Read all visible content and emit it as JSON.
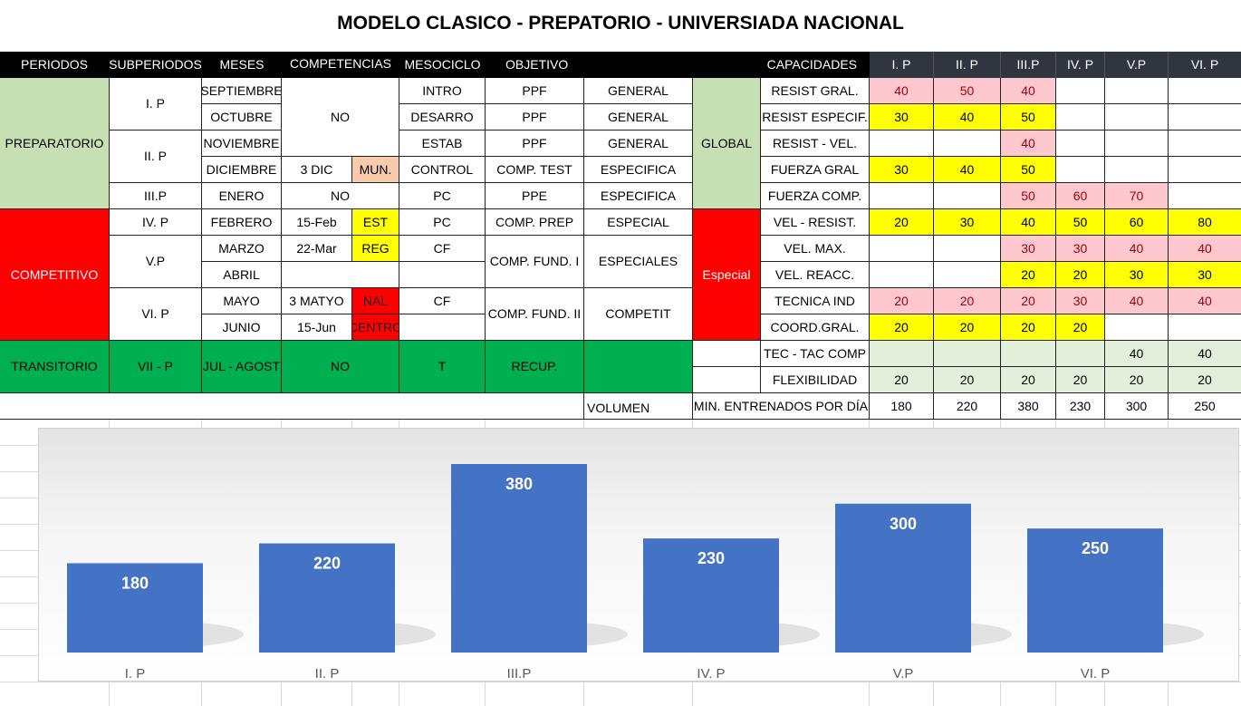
{
  "title": "MODELO CLASICO - PREPATORIO  - UNIVERSIADA NACIONAL",
  "headers": {
    "periodos": "PERIODOS",
    "subperiodos": "SUBPERIODOS",
    "meses": "MESES",
    "competencias": "COMPETENCIAS",
    "mesociclo": "MESOCICLO",
    "objetivo": "OBJETIVO",
    "capacidades": "CAPACIDADES",
    "p1": "I. P",
    "p2": "II. P",
    "p3": "III.P",
    "p4": "IV. P",
    "p5": "V.P",
    "p6": "VI. P"
  },
  "periodos": {
    "preparatorio": "PREPARATORIO",
    "competitivo": "COMPETITIVO",
    "transitorio": "TRANSITORIO"
  },
  "subperiodos": {
    "s1": "I. P",
    "s2": "II. P",
    "s3": "III.P",
    "s4": "IV. P",
    "s5": "V.P",
    "s6": "VI. P",
    "s7": "VII -  P"
  },
  "meses": {
    "m1": "SEPTIEMBRE",
    "m2": "OCTUBRE",
    "m3": "NOVIEMBRE",
    "m4": "DICIEMBRE",
    "m5": "ENERO",
    "m6": "FEBRERO",
    "m7": "MARZO",
    "m8": "ABRIL",
    "m9": "MAYO",
    "m10": "JUNIO",
    "m11": "JUL - AGOST"
  },
  "competencias": {
    "no1": "NO",
    "dic": "3 DIC",
    "mun": "MUN.",
    "no2": "NO",
    "feb": "15-Feb",
    "est": "EST",
    "mar": "22-Mar",
    "reg": "REG",
    "may": "3 MATYO",
    "nal": "NAL",
    "jun": "15-Jun",
    "centro": "CENTRO",
    "no3": "NO"
  },
  "mesociclo": {
    "c1": "INTRO",
    "c2": "DESARRO",
    "c3": "ESTAB",
    "c4": "CONTROL",
    "c5": "PC",
    "c6": "PC",
    "c7": "CF",
    "c8": "CF",
    "c9": "T"
  },
  "objetivo": {
    "o1": "PPF",
    "o2": "PPF",
    "o3": "PPF",
    "o4": "COMP. TEST",
    "o5": "PPE",
    "o6": "COMP. PREP",
    "o7": "COMP. FUND. I",
    "o8": "COMP. FUND. II",
    "o9": "RECUP."
  },
  "tipo": {
    "t1": "GENERAL",
    "t2": "GENERAL",
    "t3": "GENERAL",
    "t4": "ESPECIFICA",
    "t5": "ESPECIFICA",
    "t6": "ESPECIAL",
    "t7": "ESPECIALES",
    "t8": "COMPETIT"
  },
  "grupo": {
    "global": "GLOBAL",
    "especial": "Especial"
  },
  "capacidades": [
    {
      "label": "RESIST GRAL.",
      "values": [
        "40",
        "50",
        "40",
        "",
        "",
        ""
      ],
      "colors": [
        "pink",
        "pink",
        "pink",
        "",
        "",
        ""
      ]
    },
    {
      "label": "RESIST ESPECIF.",
      "values": [
        "30",
        "40",
        "50",
        "",
        "",
        ""
      ],
      "colors": [
        "yellow",
        "yellow",
        "yellow",
        "",
        "",
        ""
      ]
    },
    {
      "label": "RESIST - VEL.",
      "values": [
        "",
        "",
        "40",
        "",
        "",
        ""
      ],
      "colors": [
        "",
        "",
        "pink",
        "",
        "",
        ""
      ]
    },
    {
      "label": "FUERZA GRAL",
      "values": [
        "30",
        "40",
        "50",
        "",
        "",
        ""
      ],
      "colors": [
        "yellow",
        "yellow",
        "yellow",
        "",
        "",
        ""
      ]
    },
    {
      "label": "FUERZA COMP.",
      "values": [
        "",
        "",
        "50",
        "60",
        "70",
        ""
      ],
      "colors": [
        "",
        "",
        "pink",
        "pink",
        "pink",
        ""
      ]
    },
    {
      "label": "VEL - RESIST.",
      "values": [
        "20",
        "30",
        "40",
        "50",
        "60",
        "80"
      ],
      "colors": [
        "yellow",
        "yellow",
        "yellow",
        "yellow",
        "yellow",
        "yellow"
      ]
    },
    {
      "label": "VEL. MAX.",
      "values": [
        "",
        "",
        "30",
        "30",
        "40",
        "40"
      ],
      "colors": [
        "",
        "",
        "pink",
        "pink",
        "pink",
        "pink"
      ]
    },
    {
      "label": "VEL. REACC.",
      "values": [
        "",
        "",
        "20",
        "20",
        "30",
        "30"
      ],
      "colors": [
        "",
        "",
        "yellow",
        "yellow",
        "yellow",
        "yellow"
      ]
    },
    {
      "label": "TECNICA IND",
      "values": [
        "20",
        "20",
        "20",
        "30",
        "40",
        "40"
      ],
      "colors": [
        "pink",
        "pink",
        "pink",
        "pink",
        "pink",
        "pink"
      ]
    },
    {
      "label": "COORD.GRAL.",
      "values": [
        "20",
        "20",
        "20",
        "20",
        "",
        ""
      ],
      "colors": [
        "yellow",
        "yellow",
        "yellow",
        "yellow",
        "",
        ""
      ]
    },
    {
      "label": "TEC - TAC COMP",
      "values": [
        "",
        "",
        "",
        "",
        "40",
        "40"
      ],
      "colors": [
        "ltgreen",
        "ltgreen",
        "ltgreen",
        "ltgreen",
        "ltgreen",
        "ltgreen"
      ]
    },
    {
      "label": "FLEXIBILIDAD",
      "values": [
        "20",
        "20",
        "20",
        "20",
        "20",
        "20"
      ],
      "colors": [
        "ltgreen",
        "ltgreen",
        "ltgreen",
        "ltgreen",
        "ltgreen",
        "ltgreen"
      ]
    }
  ],
  "volumen": {
    "label": "VOLUMEN",
    "min_label": "MIN. ENTRENADOS POR DÍA",
    "values": [
      "180",
      "220",
      "380",
      "230",
      "300",
      "250"
    ]
  },
  "chart_data": {
    "type": "bar",
    "categories": [
      "I. P",
      "II. P",
      "III.P",
      "IV. P",
      "V.P",
      "VI. P"
    ],
    "values": [
      180,
      220,
      380,
      230,
      300,
      250
    ],
    "title": "",
    "xlabel": "",
    "ylabel": "",
    "ylim": [
      0,
      380
    ],
    "grid": false,
    "bar_color": "#4472c4"
  }
}
